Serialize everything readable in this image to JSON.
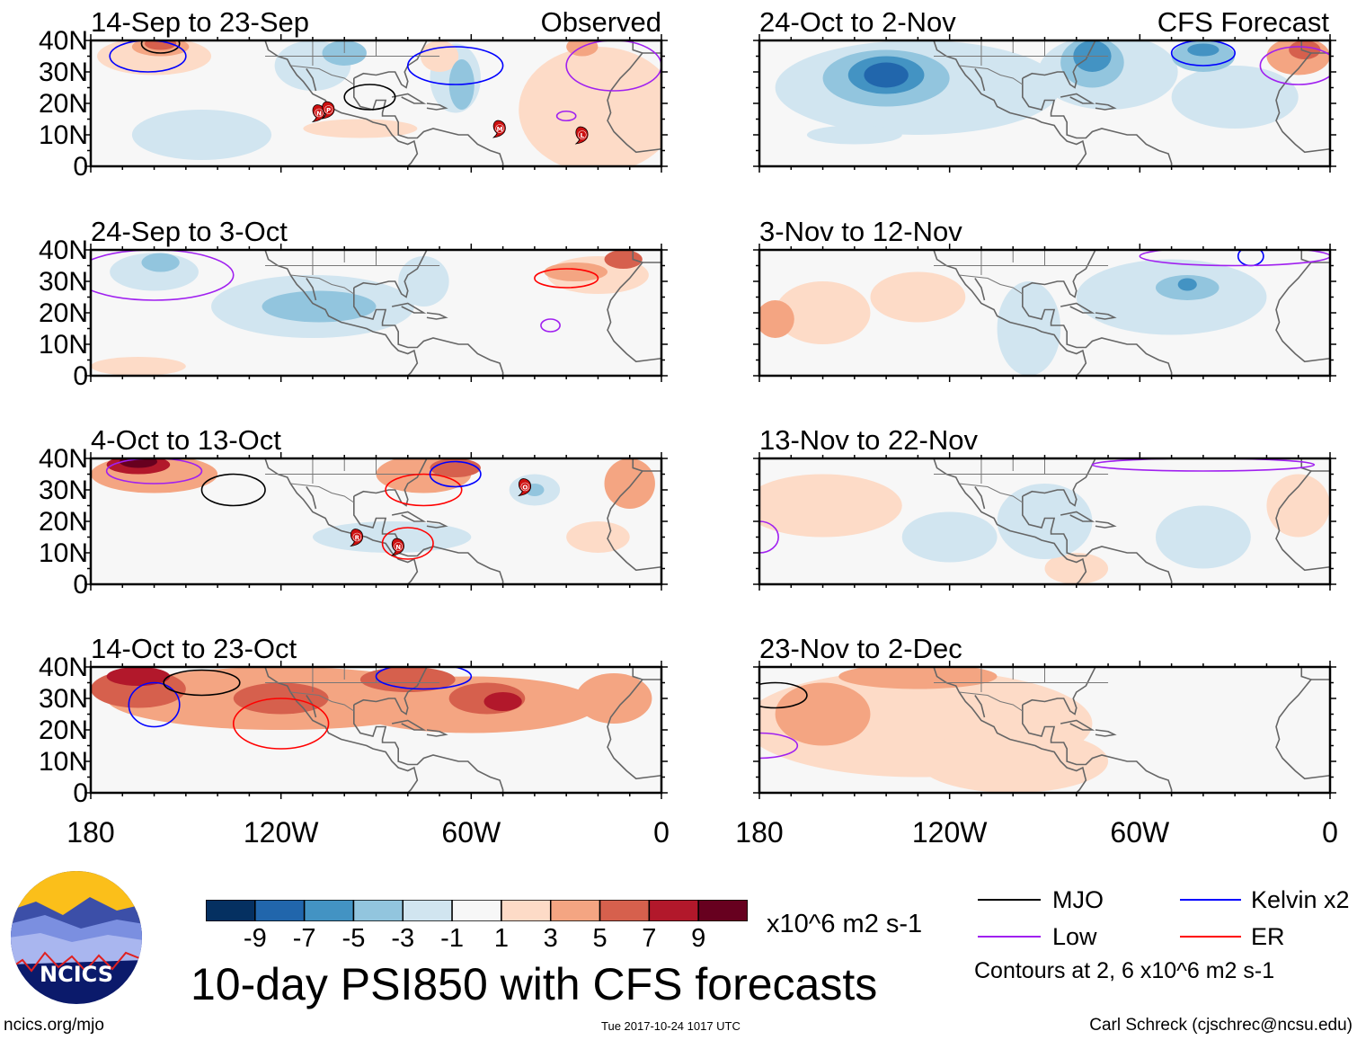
{
  "figure": {
    "title": "10-day PSI850 with CFS forecasts",
    "left_column_label": "Observed",
    "right_column_label": "CFS Forecast",
    "lat_labels": [
      "40N",
      "30N",
      "20N",
      "10N",
      "0"
    ],
    "lon_labels": [
      "180",
      "120W",
      "60W",
      "0"
    ],
    "footer_left": "ncics.org/mjo",
    "footer_center": "Tue 2017-10-24 1017 UTC",
    "footer_right": "Carl Schreck (cjschrec@ncsu.edu)",
    "logo_text": "NCICS"
  },
  "colorbar": {
    "units": "x10^6 m2 s-1",
    "colors": [
      "#053061",
      "#2166ac",
      "#4393c3",
      "#92c5de",
      "#d1e5f0",
      "#f7f7f7",
      "#fddbc7",
      "#f4a582",
      "#d6604d",
      "#b2182b",
      "#67001f"
    ],
    "tick_labels": [
      "-9",
      "-7",
      "-5",
      "-3",
      "-1",
      "1",
      "3",
      "5",
      "7",
      "9"
    ]
  },
  "legend": {
    "items": [
      {
        "label": "MJO",
        "color": "#000000"
      },
      {
        "label": "Kelvin x2",
        "color": "#0000ff"
      },
      {
        "label": "Low",
        "color": "#a020f0"
      },
      {
        "label": "ER",
        "color": "#ff0000"
      }
    ],
    "contours_note": "Contours at 2, 6 x10^6 m2 s-1"
  },
  "contour_colors": {
    "MJO": "#000000",
    "Kelvin": "#0000ff",
    "Low": "#a020f0",
    "ER": "#ff0000"
  },
  "panels": [
    {
      "title": "14-Sep to 23-Sep",
      "column": "left",
      "row": 0,
      "anomalies": [
        [
          -145,
          10,
          22,
          8,
          -2
        ],
        [
          -110,
          32,
          12,
          8,
          -2
        ],
        [
          -100,
          36,
          7,
          4,
          -4
        ],
        [
          -65,
          28,
          8,
          11,
          -2
        ],
        [
          -63,
          26,
          4,
          8,
          -4
        ],
        [
          -160,
          35,
          18,
          6,
          2
        ],
        [
          -158,
          38,
          9,
          3,
          4
        ],
        [
          -158,
          39,
          5,
          2,
          6
        ],
        [
          -95,
          12,
          18,
          3,
          2
        ],
        [
          -20,
          18,
          25,
          20,
          2
        ],
        [
          -70,
          35,
          6,
          5,
          2
        ],
        [
          -25,
          38,
          5,
          3,
          4
        ]
      ],
      "contours": [
        [
          -92,
          22,
          8,
          4,
          "MJO"
        ],
        [
          -158,
          39,
          6,
          3,
          "MJO"
        ],
        [
          -162,
          35,
          12,
          5,
          "Kelvin"
        ],
        [
          -65,
          32,
          15,
          6,
          "Kelvin"
        ],
        [
          -30,
          16,
          3,
          1.5,
          "Low"
        ],
        [
          -15,
          32,
          15,
          8,
          "Low"
        ]
      ],
      "storms": [
        {
          "name": "N",
          "lon": -108,
          "lat": 17
        },
        {
          "name": "P",
          "lon": -105,
          "lat": 18
        },
        {
          "name": "M",
          "lon": -51,
          "lat": 12
        },
        {
          "name": "L",
          "lon": -25,
          "lat": 10
        }
      ]
    },
    {
      "title": "24-Sep to 3-Oct",
      "column": "left",
      "row": 1,
      "anomalies": [
        [
          -160,
          33,
          14,
          6,
          -2
        ],
        [
          -158,
          36,
          6,
          3,
          -4
        ],
        [
          -110,
          22,
          32,
          10,
          -2
        ],
        [
          -108,
          22,
          18,
          5,
          -4
        ],
        [
          -75,
          30,
          8,
          8,
          -2
        ],
        [
          -20,
          32,
          16,
          6,
          2
        ],
        [
          -27,
          33,
          10,
          3,
          4
        ],
        [
          -12,
          37,
          6,
          3,
          5
        ],
        [
          -165,
          3,
          15,
          3,
          2
        ]
      ],
      "contours": [
        [
          -30,
          31,
          10,
          3,
          "ER"
        ],
        [
          -35,
          16,
          3,
          2,
          "Low"
        ],
        [
          -160,
          32,
          25,
          8,
          "Low"
        ]
      ],
      "storms": []
    },
    {
      "title": "4-Oct to 13-Oct",
      "column": "left",
      "row": 2,
      "anomalies": [
        [
          -160,
          35,
          20,
          6,
          3
        ],
        [
          -165,
          38,
          10,
          3,
          7
        ],
        [
          -165,
          39,
          6,
          2,
          9
        ],
        [
          -75,
          35,
          15,
          6,
          3
        ],
        [
          -65,
          37,
          8,
          3,
          5
        ],
        [
          -10,
          32,
          8,
          8,
          3
        ],
        [
          -20,
          15,
          10,
          5,
          2
        ],
        [
          -85,
          15,
          25,
          5,
          -2
        ],
        [
          -40,
          30,
          8,
          5,
          -2
        ],
        [
          -40,
          30,
          3,
          2,
          -4
        ]
      ],
      "contours": [
        [
          -135,
          30,
          10,
          5,
          "MJO"
        ],
        [
          -75,
          30,
          12,
          5,
          "ER"
        ],
        [
          -80,
          13,
          8,
          5,
          "ER"
        ],
        [
          -65,
          35,
          8,
          4,
          "Kelvin"
        ],
        [
          -160,
          36,
          15,
          4,
          "Low"
        ]
      ],
      "storms": [
        {
          "name": "R",
          "lon": -96,
          "lat": 15
        },
        {
          "name": "N",
          "lon": -83,
          "lat": 12
        },
        {
          "name": "O",
          "lon": -43,
          "lat": 31
        }
      ]
    },
    {
      "title": "14-Oct to 23-Oct",
      "column": "left",
      "row": 3,
      "anomalies": [
        [
          -120,
          30,
          55,
          10,
          3
        ],
        [
          -60,
          28,
          40,
          9,
          3
        ],
        [
          -165,
          33,
          15,
          6,
          5
        ],
        [
          -120,
          30,
          15,
          5,
          5
        ],
        [
          -55,
          30,
          12,
          5,
          5
        ],
        [
          -50,
          29,
          6,
          3,
          7
        ],
        [
          -165,
          37,
          10,
          3,
          7
        ],
        [
          -80,
          36,
          15,
          4,
          5
        ],
        [
          -15,
          30,
          12,
          8,
          3
        ]
      ],
      "contours": [
        [
          -160,
          28,
          8,
          7,
          "Kelvin"
        ],
        [
          -120,
          22,
          15,
          8,
          "ER"
        ],
        [
          -145,
          35,
          12,
          4,
          "MJO"
        ],
        [
          -75,
          37,
          15,
          4,
          "Kelvin"
        ]
      ],
      "storms": []
    },
    {
      "title": "24-Oct to 2-Nov",
      "column": "right",
      "row": 0,
      "anomalies": [
        [
          -130,
          25,
          45,
          15,
          -2
        ],
        [
          -70,
          30,
          22,
          12,
          -2
        ],
        [
          -30,
          22,
          20,
          10,
          -2
        ],
        [
          -140,
          28,
          20,
          9,
          -4
        ],
        [
          -140,
          29,
          12,
          6,
          -6
        ],
        [
          -140,
          29,
          7,
          4,
          -8
        ],
        [
          -75,
          33,
          10,
          8,
          -4
        ],
        [
          -75,
          35,
          6,
          5,
          -6
        ],
        [
          -40,
          35,
          10,
          5,
          -4
        ],
        [
          -40,
          37,
          5,
          2,
          -6
        ],
        [
          -150,
          10,
          15,
          3,
          -2
        ],
        [
          -10,
          35,
          10,
          6,
          3
        ],
        [
          -8,
          37,
          5,
          3,
          5
        ]
      ],
      "contours": [
        [
          -40,
          36,
          10,
          4,
          "Kelvin"
        ],
        [
          -10,
          32,
          12,
          6,
          "Low"
        ]
      ],
      "storms": []
    },
    {
      "title": "3-Nov to 12-Nov",
      "column": "right",
      "row": 1,
      "anomalies": [
        [
          -50,
          25,
          30,
          12,
          -2
        ],
        [
          -45,
          28,
          10,
          4,
          -4
        ],
        [
          -45,
          29,
          3,
          2,
          -6
        ],
        [
          -95,
          15,
          10,
          15,
          -2
        ],
        [
          -175,
          18,
          6,
          6,
          3
        ],
        [
          -160,
          20,
          15,
          10,
          1.5
        ],
        [
          -130,
          25,
          15,
          8,
          1.5
        ]
      ],
      "contours": [
        [
          -25,
          38,
          4,
          3,
          "Kelvin"
        ],
        [
          -30,
          38,
          30,
          3,
          "Low"
        ]
      ],
      "storms": []
    },
    {
      "title": "13-Nov to 22-Nov",
      "column": "right",
      "row": 2,
      "anomalies": [
        [
          -160,
          25,
          25,
          10,
          1.5
        ],
        [
          -80,
          5,
          10,
          5,
          1.5
        ],
        [
          -10,
          25,
          10,
          10,
          1.5
        ],
        [
          -40,
          15,
          15,
          10,
          -2
        ],
        [
          -90,
          20,
          15,
          12,
          -2
        ],
        [
          -120,
          15,
          15,
          8,
          -1.5
        ]
      ],
      "contours": [
        [
          -180,
          15,
          6,
          5,
          "Low"
        ],
        [
          -40,
          38,
          35,
          2,
          "Low"
        ]
      ],
      "storms": []
    },
    {
      "title": "23-Nov to 2-Dec",
      "column": "right",
      "row": 3,
      "anomalies": [
        [
          -130,
          22,
          55,
          17,
          2
        ],
        [
          -160,
          25,
          15,
          10,
          4
        ],
        [
          -130,
          37,
          25,
          4,
          4
        ],
        [
          -100,
          10,
          30,
          10,
          2
        ]
      ],
      "contours": [
        [
          -175,
          31,
          10,
          4,
          "MJO"
        ],
        [
          -180,
          15,
          12,
          4,
          "Low"
        ]
      ],
      "storms": []
    }
  ]
}
